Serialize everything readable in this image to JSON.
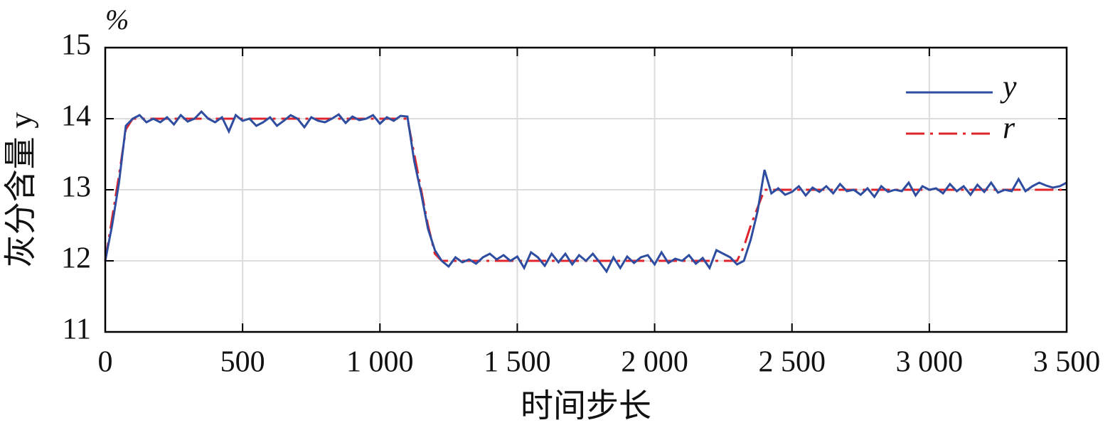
{
  "chart_data": {
    "type": "line",
    "unit": "%",
    "xlabel": "时间步长",
    "ylabel": "灰分含量 y",
    "xlim": [
      0,
      3500
    ],
    "ylim": [
      11,
      15
    ],
    "xticks": [
      0,
      500,
      {
        "value": 1000,
        "label": "1 000"
      },
      {
        "value": 1500,
        "label": "1 500"
      },
      {
        "value": 2000,
        "label": "2 000"
      },
      {
        "value": 2500,
        "label": "2 500"
      },
      {
        "value": 3000,
        "label": "3 000"
      },
      {
        "value": 3500,
        "label": "3 500"
      }
    ],
    "yticks": [
      11,
      12,
      13,
      14,
      15
    ],
    "grid": true,
    "legend": "upper right",
    "x": [
      0,
      25,
      50,
      75,
      100,
      125,
      150,
      175,
      200,
      225,
      250,
      275,
      300,
      325,
      350,
      375,
      400,
      425,
      450,
      475,
      500,
      525,
      550,
      575,
      600,
      625,
      650,
      675,
      700,
      725,
      750,
      775,
      800,
      825,
      850,
      875,
      900,
      925,
      950,
      975,
      1000,
      1025,
      1050,
      1075,
      1100,
      1125,
      1150,
      1175,
      1200,
      1225,
      1250,
      1275,
      1300,
      1325,
      1350,
      1375,
      1400,
      1425,
      1450,
      1475,
      1500,
      1525,
      1550,
      1575,
      1600,
      1625,
      1650,
      1675,
      1700,
      1725,
      1750,
      1775,
      1800,
      1825,
      1850,
      1875,
      1900,
      1925,
      1950,
      1975,
      2000,
      2025,
      2050,
      2075,
      2100,
      2125,
      2150,
      2175,
      2200,
      2225,
      2250,
      2275,
      2300,
      2325,
      2350,
      2375,
      2400,
      2425,
      2450,
      2475,
      2500,
      2525,
      2550,
      2575,
      2600,
      2625,
      2650,
      2675,
      2700,
      2725,
      2750,
      2775,
      2800,
      2825,
      2850,
      2875,
      2900,
      2925,
      2950,
      2975,
      3000,
      3025,
      3050,
      3075,
      3100,
      3125,
      3150,
      3175,
      3200,
      3225,
      3250,
      3275,
      3300,
      3325,
      3350,
      3375,
      3400,
      3425,
      3450,
      3475,
      3500
    ],
    "series": [
      {
        "name": "y",
        "color": "#2f4da0",
        "dash": "solid",
        "values": [
          12.0,
          12.5,
          13.1,
          13.9,
          14.0,
          14.05,
          13.95,
          14.0,
          13.95,
          14.02,
          13.92,
          14.05,
          13.96,
          14.0,
          14.1,
          14.0,
          13.95,
          14.02,
          13.82,
          14.05,
          13.97,
          14.0,
          13.9,
          13.95,
          14.02,
          13.9,
          13.97,
          14.05,
          14.0,
          13.88,
          14.02,
          13.97,
          13.95,
          14.0,
          14.06,
          13.94,
          14.03,
          13.98,
          14.0,
          14.05,
          13.93,
          14.02,
          13.97,
          14.04,
          14.03,
          13.4,
          12.95,
          12.45,
          12.15,
          12.0,
          11.92,
          12.05,
          11.98,
          12.02,
          11.96,
          12.05,
          12.1,
          12.02,
          12.08,
          12.0,
          12.06,
          11.9,
          12.12,
          12.05,
          11.93,
          12.1,
          11.98,
          12.1,
          11.95,
          12.08,
          12.0,
          12.1,
          11.98,
          11.85,
          12.05,
          11.9,
          12.06,
          11.97,
          12.05,
          12.08,
          11.95,
          12.12,
          11.97,
          12.03,
          12.0,
          12.08,
          11.96,
          12.04,
          11.9,
          12.15,
          12.1,
          12.05,
          11.95,
          12.0,
          12.3,
          12.7,
          13.28,
          12.95,
          13.02,
          12.93,
          12.97,
          13.05,
          12.92,
          13.03,
          12.97,
          13.05,
          12.95,
          13.08,
          12.98,
          13.0,
          12.93,
          13.02,
          12.9,
          13.05,
          12.97,
          13.0,
          12.98,
          13.1,
          12.92,
          13.05,
          13.0,
          13.02,
          12.95,
          13.08,
          12.98,
          13.05,
          12.93,
          13.07,
          12.97,
          13.1,
          12.96,
          13.0,
          12.98,
          13.15,
          12.98,
          13.05,
          13.1,
          13.06,
          13.03,
          13.05,
          13.1
        ]
      },
      {
        "name": "r",
        "color": "#e0242c",
        "dash": "dashdot",
        "values": [
          12,
          12.6,
          13.2,
          13.85,
          14,
          14,
          14,
          14,
          14,
          14,
          14,
          14,
          14,
          14,
          14,
          14,
          14,
          14,
          14,
          14,
          14,
          14,
          14,
          14,
          14,
          14,
          14,
          14,
          14,
          14,
          14,
          14,
          14,
          14,
          14,
          14,
          14,
          14,
          14,
          14,
          14,
          14,
          14,
          14,
          14,
          13.5,
          13.0,
          12.5,
          12.1,
          12,
          12,
          12,
          12,
          12,
          12,
          12,
          12,
          12,
          12,
          12,
          12,
          12,
          12,
          12,
          12,
          12,
          12,
          12,
          12,
          12,
          12,
          12,
          12,
          12,
          12,
          12,
          12,
          12,
          12,
          12,
          12,
          12,
          12,
          12,
          12,
          12,
          12,
          12,
          12,
          12,
          12,
          12,
          12,
          12.2,
          12.5,
          12.75,
          13,
          13,
          13,
          13,
          13,
          13,
          13,
          13,
          13,
          13,
          13,
          13,
          13,
          13,
          13,
          13,
          13,
          13,
          13,
          13,
          13,
          13,
          13,
          13,
          13,
          13,
          13,
          13,
          13,
          13,
          13,
          13,
          13,
          13,
          13,
          13,
          13,
          13,
          13,
          13,
          13,
          13,
          13,
          13,
          13
        ]
      }
    ]
  }
}
